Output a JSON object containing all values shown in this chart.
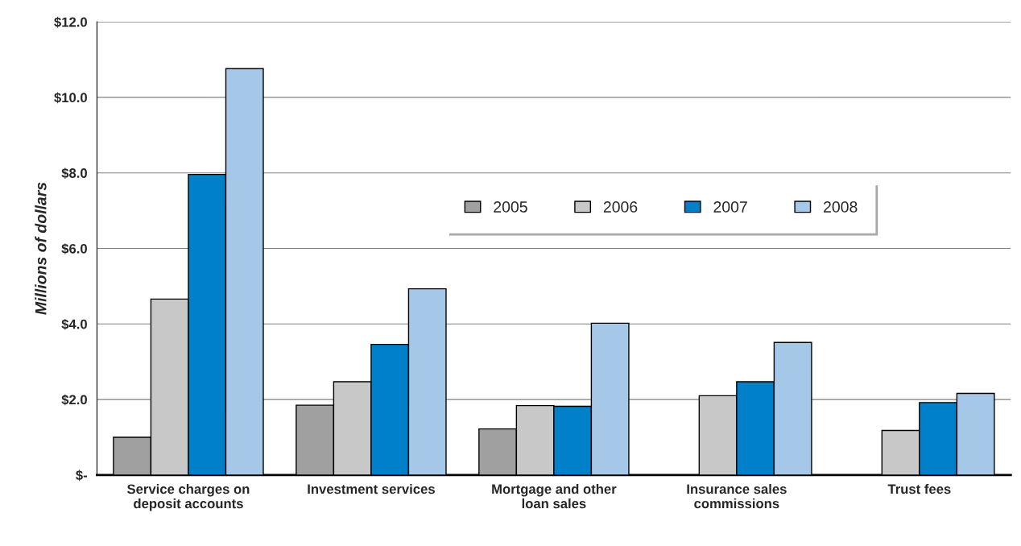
{
  "chart_data": {
    "type": "bar",
    "ylabel": "Millions of dollars",
    "categories": [
      "Service charges on\ndeposit accounts",
      "Investment services",
      "Mortgage and other\nloan sales",
      "Insurance sales\ncommissions",
      "Trust fees"
    ],
    "series": [
      {
        "name": "2005",
        "color": "#a0a0a0",
        "values": [
          1.0,
          1.85,
          1.22,
          null,
          null
        ]
      },
      {
        "name": "2006",
        "color": "#c8c8c8",
        "values": [
          4.66,
          2.47,
          1.84,
          2.1,
          1.18
        ]
      },
      {
        "name": "2007",
        "color": "#0080c8",
        "values": [
          7.96,
          3.46,
          1.82,
          2.47,
          1.92
        ]
      },
      {
        "name": "2008",
        "color": "#a6c8e8",
        "values": [
          10.76,
          4.93,
          4.02,
          3.51,
          2.16
        ]
      }
    ],
    "ylim": [
      0,
      12
    ],
    "yticks": [
      {
        "value": 0,
        "label": "$-"
      },
      {
        "value": 2,
        "label": "$2.0"
      },
      {
        "value": 4,
        "label": "$4.0"
      },
      {
        "value": 6,
        "label": "$6.0"
      },
      {
        "value": 8,
        "label": "$8.0"
      },
      {
        "value": 10,
        "label": "$10.0"
      },
      {
        "value": 12,
        "label": "$12.0"
      }
    ],
    "grid": "y",
    "legend": "top right"
  }
}
